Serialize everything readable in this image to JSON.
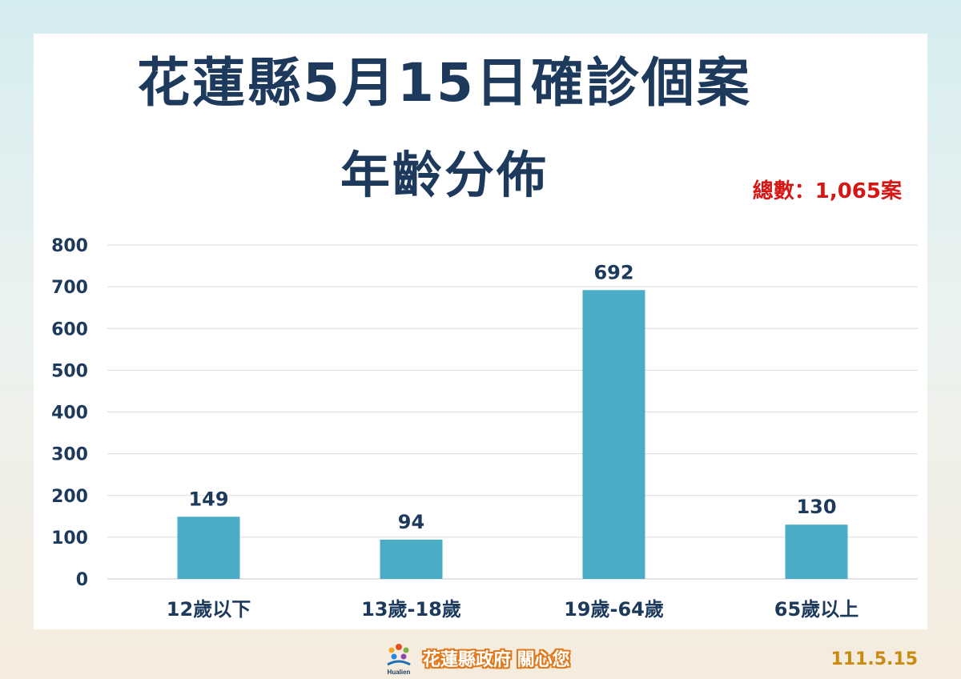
{
  "header": {
    "title_line1": "花蓮縣5月15日確診個案",
    "title_line2": "年齡分佈",
    "total_label": "總數：1,065案"
  },
  "chart_data": {
    "type": "bar",
    "title": "花蓮縣5月15日確診個案 年齡分佈",
    "categories": [
      "12歲以下",
      "13歲-18歲",
      "19歲-64歲",
      "65歲以上"
    ],
    "values": [
      149,
      94,
      692,
      130
    ],
    "data_labels": [
      "149",
      "94",
      "692",
      "130"
    ],
    "ylim": [
      0,
      800
    ],
    "yticks": [
      0,
      100,
      200,
      300,
      400,
      500,
      600,
      700,
      800
    ],
    "grid": true,
    "legend": "none",
    "bar_color": "#4bacc6"
  },
  "footer": {
    "org_text": "花蓮縣政府 關心您",
    "logo_text": "Hualien",
    "date": "111.5.15"
  },
  "colors": {
    "title": "#1d3a5c",
    "total": "#d61515",
    "date": "#c98a12",
    "footer_outline": "#e07a1f"
  }
}
